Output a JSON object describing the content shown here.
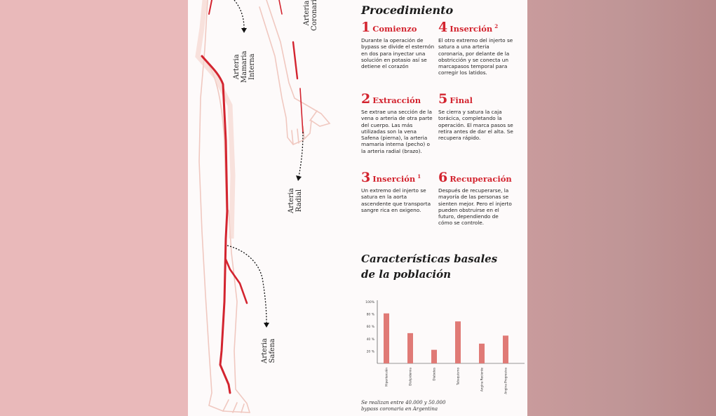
{
  "arteries": {
    "mamaria": [
      "Arteria",
      "Mamaria",
      "Interna"
    ],
    "coronaria": [
      "Arteria",
      "Coronaria"
    ],
    "radial": [
      "Arteria",
      "Radial"
    ],
    "safena": [
      "Arteria",
      "Safena"
    ]
  },
  "procedure": {
    "title": "Procedimiento",
    "steps": [
      {
        "num": "1",
        "name": "Comienzo",
        "sup": "",
        "text": "Durante la operación de bypass se divide el esternón en dos para inyectar una solución en potasio así se detiene el corazón"
      },
      {
        "num": "2",
        "name": "Extracción",
        "sup": "",
        "text": "Se extrae una sección de la vena o arteria de otra parte del cuerpo. Las más utilizadas son la vena Safena (pierna), la arteria mamaria interna (pecho) o la arteria radial (brazo)."
      },
      {
        "num": "3",
        "name": "Inserción",
        "sup": "1",
        "text": "Un extremo del injerto se satura en la aorta ascendente que transporta sangre rica en oxigeno."
      },
      {
        "num": "4",
        "name": "Inserción",
        "sup": "2",
        "text": "El otro extremo del injerto se satura a una arteria coronaria, por delante de la obstricción y se conecta un marcapasos temporal para corregir los latidos."
      },
      {
        "num": "5",
        "name": "Final",
        "sup": "",
        "text": "Se cierra y satura la caja torácica, completando la operación. El marca pasos se retira antes de dar el alta. Se recupera rápido."
      },
      {
        "num": "6",
        "name": "Recuperación",
        "sup": "",
        "text": "Después de recuperarse, la mayoría de las personas se sienten mejor. Pero el injerto pueden obstruirse en el futuro, dependiendo de cómo se controle."
      }
    ]
  },
  "population": {
    "title_line1": "Características basales",
    "title_line2": "de la población"
  },
  "chart_data": {
    "type": "bar",
    "title": "Características basales de la población",
    "categories": [
      "Hipertensión",
      "Dislipidemia",
      "Diabetes",
      "Tabaquismo",
      "Angina Reciente",
      "Angina Progresiva"
    ],
    "values": [
      81,
      49,
      22,
      68,
      32,
      45
    ],
    "ylim": [
      0,
      100
    ],
    "yticks": [
      "20 %",
      "40 %",
      "60 %",
      "80 %",
      "100%"
    ],
    "ytick_values": [
      20,
      40,
      60,
      80,
      100
    ],
    "bar_color": "#e07a76",
    "grid": false
  },
  "footnote": {
    "line1": "Se realizan entre 40.000 y 50.000",
    "line2": "bypass coronaria en Argentina"
  }
}
